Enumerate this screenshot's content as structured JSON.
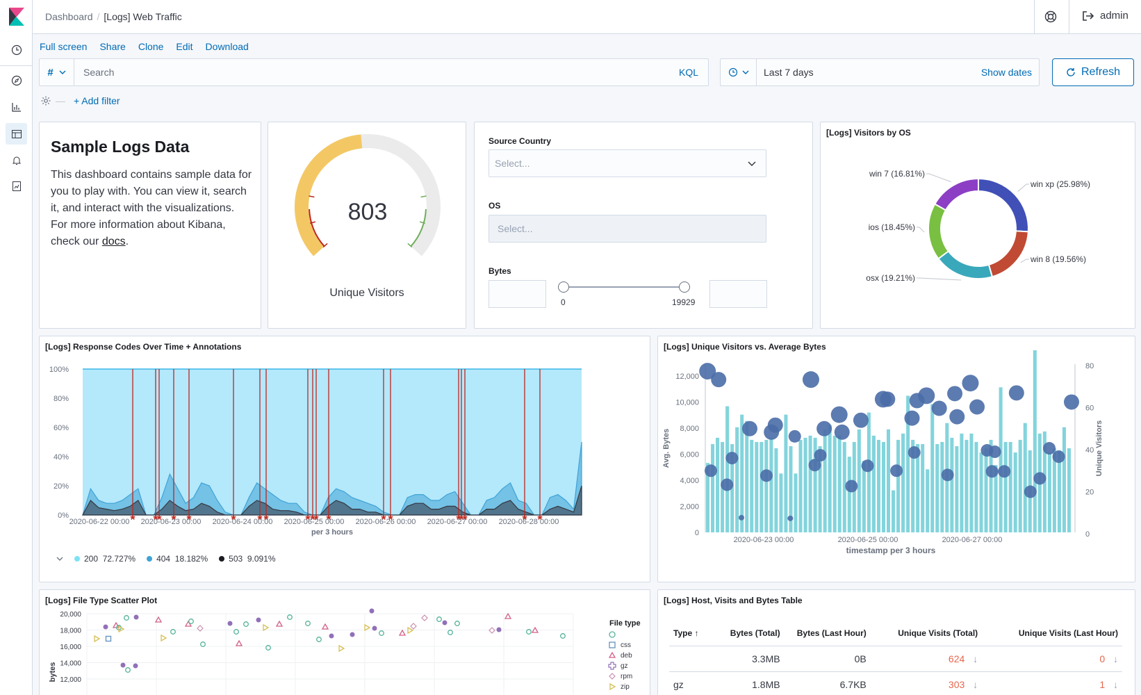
{
  "breadcrumbs": [
    "Dashboard",
    "[Logs] Web Traffic"
  ],
  "user": {
    "name": "admin"
  },
  "toolbar": {
    "links": [
      "Full screen",
      "Share",
      "Clone",
      "Edit",
      "Download"
    ]
  },
  "query": {
    "lang_symbol": "#",
    "placeholder": "Search",
    "lang_label": "KQL"
  },
  "time": {
    "range": "Last 7 days",
    "show_dates": "Show dates",
    "refresh": "Refresh"
  },
  "filters": {
    "add": "+ Add filter"
  },
  "markdown": {
    "title": "Sample Logs Data",
    "text": "This dashboard contains sample data for you to play with. You can view it, search it, and interact with the visualizations. For more information about Kibana, check our ",
    "link": "docs",
    "end": "."
  },
  "gauge": {
    "value": "803",
    "label": "Unique Visitors"
  },
  "controls": {
    "source_country": {
      "label": "Source Country",
      "placeholder": "Select..."
    },
    "os": {
      "label": "OS",
      "placeholder": "Select..."
    },
    "bytes": {
      "label": "Bytes",
      "min": "0",
      "max": "19929"
    }
  },
  "pie": {
    "title": "[Logs] Visitors by OS",
    "slices": [
      {
        "label": "win xp (25.98%)",
        "value": 25.98,
        "color": "#4150b7"
      },
      {
        "label": "win 8 (19.56%)",
        "value": 19.56,
        "color": "#c04a34"
      },
      {
        "label": "osx (19.21%)",
        "value": 19.21,
        "color": "#3aa8bb"
      },
      {
        "label": "ios (18.45%)",
        "value": 18.45,
        "color": "#79bf41"
      },
      {
        "label": "win 7 (16.81%)",
        "value": 16.81,
        "color": "#8c3fc4"
      }
    ]
  },
  "response_chart": {
    "title": "[Logs] Response Codes Over Time + Annotations",
    "ylabels": [
      "100%",
      "80%",
      "60%",
      "40%",
      "20%",
      "0%"
    ],
    "xlabels": [
      "2020-06-22 00:00",
      "2020-06-23 00:00",
      "2020-06-24 00:00",
      "2020-06-25 00:00",
      "2020-06-26 00:00",
      "2020-06-27 00:00",
      "2020-06-28 00:00"
    ],
    "xaxis_title": "per 3 hours",
    "legend": [
      {
        "name": "200",
        "value": "72.727%",
        "color": "#7de2f5"
      },
      {
        "name": "404",
        "value": "18.182%",
        "color": "#3fa3d6"
      },
      {
        "name": "503",
        "value": "9.091%",
        "color": "#1a1c21"
      }
    ]
  },
  "visitors_chart": {
    "title": "[Logs] Unique Visitors vs. Average Bytes",
    "left_ticks": [
      "12,000",
      "10,000",
      "8,000",
      "6,000",
      "4,000",
      "2,000",
      "0"
    ],
    "right_ticks": [
      "80",
      "60",
      "40",
      "20",
      "0"
    ],
    "xlabels": [
      "2020-06-23 00:00",
      "2020-06-25 00:00",
      "2020-06-27 00:00"
    ],
    "xaxis_title": "timestamp per 3 hours",
    "left_title": "Avg. Bytes",
    "right_title": "Unique Visitors"
  },
  "scatter": {
    "title": "[Logs] File Type Scatter Plot",
    "yticks": [
      "20,000",
      "18,000",
      "16,000",
      "14,000",
      "12,000"
    ],
    "ytitle": "bytes",
    "legend_title": "File type",
    "legend": [
      {
        "name": "",
        "color": "#54b399",
        "shape": "circle"
      },
      {
        "name": "css",
        "color": "#6092c0",
        "shape": "square"
      },
      {
        "name": "deb",
        "color": "#d36086",
        "shape": "triangle"
      },
      {
        "name": "gz",
        "color": "#9170b8",
        "shape": "cross"
      },
      {
        "name": "rpm",
        "color": "#ca8eae",
        "shape": "diamond"
      },
      {
        "name": "zip",
        "color": "#d6bf57",
        "shape": "tri-right"
      }
    ]
  },
  "table": {
    "title": "[Logs] Host, Visits and Bytes Table",
    "headers": [
      "Type",
      "Bytes (Total)",
      "Bytes (Last Hour)",
      "Unique Visits (Total)",
      "Unique Visits (Last Hour)"
    ],
    "rows": [
      [
        "",
        "3.3MB",
        "0B",
        "624",
        "0"
      ],
      [
        "gz",
        "1.8MB",
        "6.7KB",
        "303",
        "1"
      ]
    ]
  }
}
